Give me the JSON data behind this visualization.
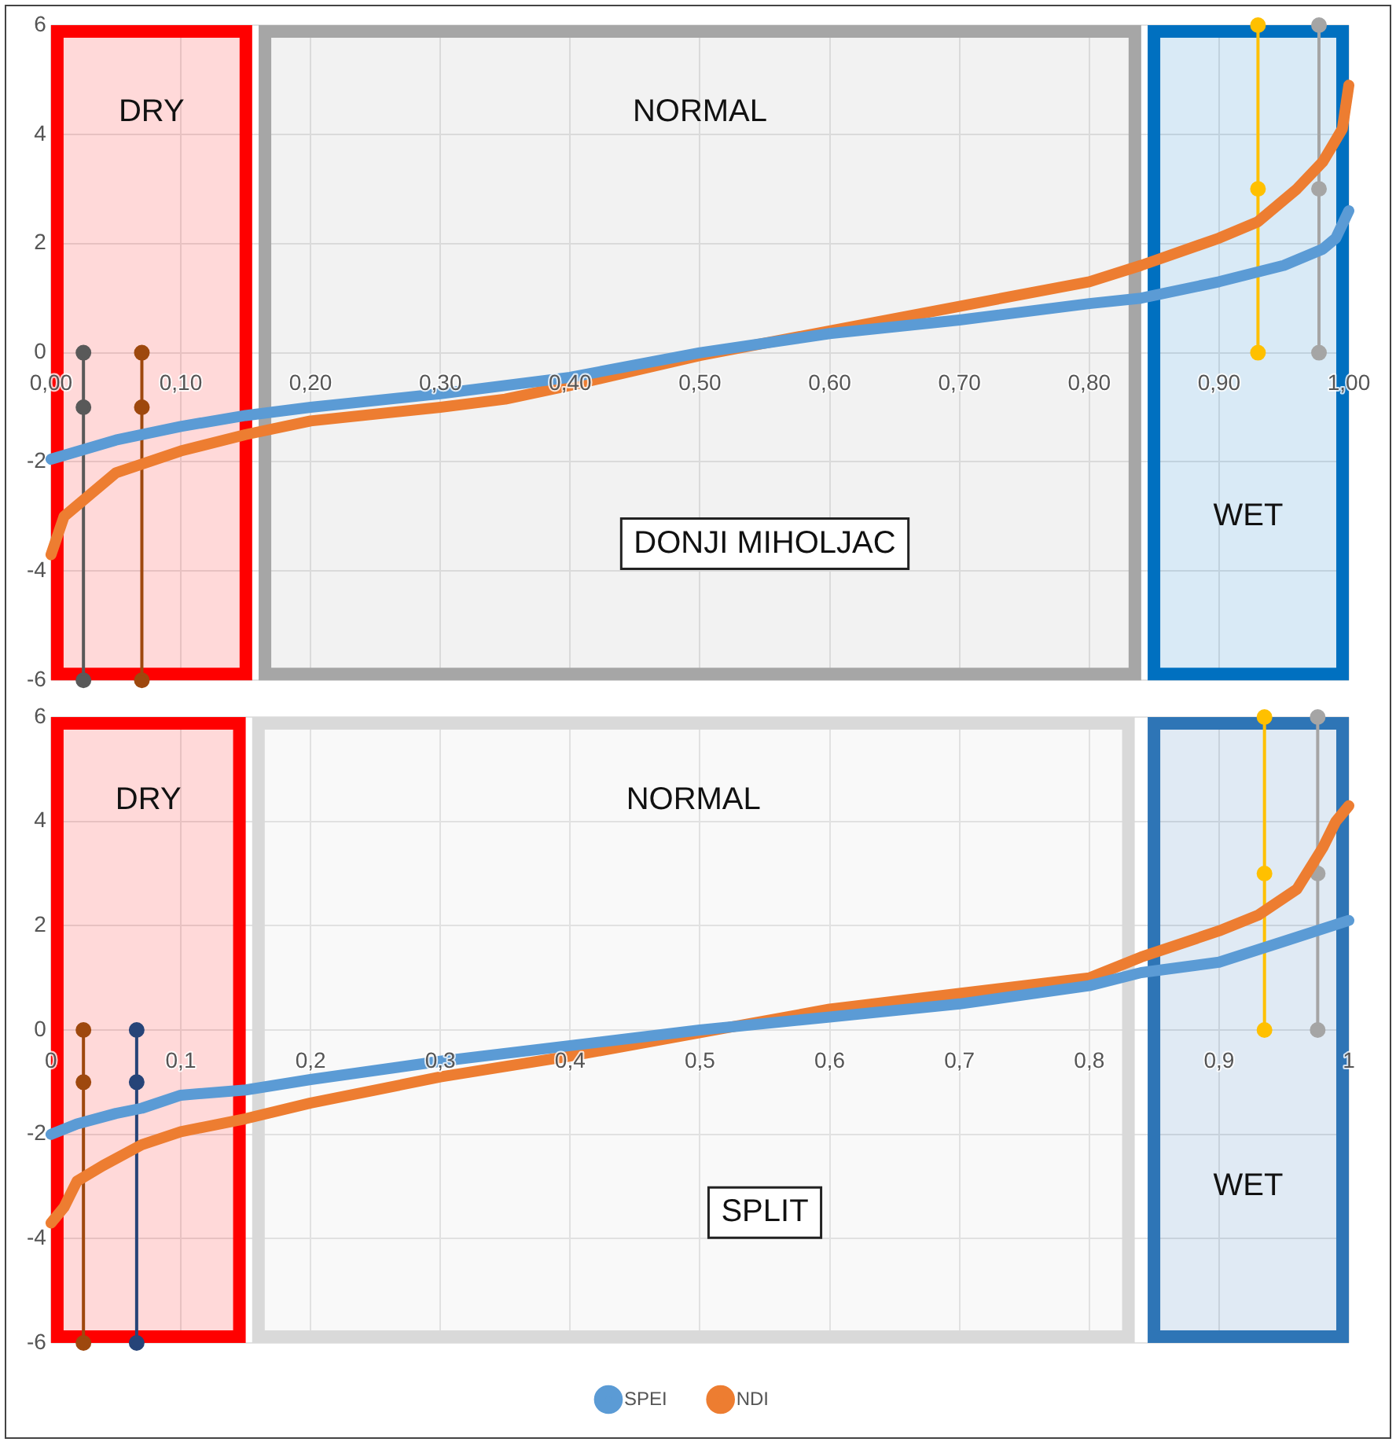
{
  "chart_data": [
    {
      "type": "line",
      "annotations": [
        "DONJI MIHOLJAC"
      ],
      "xlim": [
        0,
        1
      ],
      "ylim": [
        -6,
        6
      ],
      "xticks": [
        {
          "value": 0,
          "label": "0,00"
        },
        {
          "value": 0.1,
          "label": "0,10"
        },
        {
          "value": 0.2,
          "label": "0,20"
        },
        {
          "value": 0.3,
          "label": "0,30"
        },
        {
          "value": 0.4,
          "label": "0,40"
        },
        {
          "value": 0.5,
          "label": "0,50"
        },
        {
          "value": 0.6,
          "label": "0,60"
        },
        {
          "value": 0.7,
          "label": "0,70"
        },
        {
          "value": 0.8,
          "label": "0,80"
        },
        {
          "value": 0.9,
          "label": "0,90"
        },
        {
          "value": 1,
          "label": "1,00"
        }
      ],
      "yticks": [
        -6,
        -4,
        -2,
        0,
        2,
        4,
        6
      ],
      "grid": true,
      "legend": false,
      "line_style": "solid",
      "marker": "none",
      "bands": [
        {
          "axis": "x",
          "from": 0,
          "to": 0.155,
          "label": "DRY",
          "color": "#ff0000"
        },
        {
          "axis": "x",
          "from": 0.16,
          "to": 0.84,
          "label": "NORMAL",
          "color": "#a6a6a6"
        },
        {
          "axis": "x",
          "from": 0.845,
          "to": 1,
          "label": "WET",
          "color": "#0070c0"
        }
      ],
      "series": [
        {
          "color": "#5b9bd5",
          "x": [
            0,
            0.05,
            0.1,
            0.15,
            0.2,
            0.3,
            0.4,
            0.5,
            0.6,
            0.7,
            0.8,
            0.84,
            0.9,
            0.95,
            0.98,
            0.99,
            1
          ],
          "values": [
            -1.95,
            -1.6,
            -1.35,
            -1.15,
            -1,
            -0.75,
            -0.45,
            0,
            0.35,
            0.6,
            0.9,
            1,
            1.3,
            1.6,
            1.9,
            2.1,
            2.6
          ]
        },
        {
          "color": "#ed7d31",
          "x": [
            0,
            0.01,
            0.03,
            0.05,
            0.1,
            0.15,
            0.2,
            0.3,
            0.35,
            0.4,
            0.5,
            0.6,
            0.7,
            0.8,
            0.84,
            0.9,
            0.93,
            0.96,
            0.98,
            0.99,
            0.995,
            1
          ],
          "values": [
            -3.7,
            -3,
            -2.6,
            -2.2,
            -1.8,
            -1.5,
            -1.25,
            -1,
            -0.85,
            -0.6,
            -0.05,
            0.4,
            0.85,
            1.3,
            1.6,
            2.1,
            2.4,
            3,
            3.5,
            3.9,
            4.1,
            4.9
          ]
        },
        {
          "color": "#595959",
          "marker": "circle",
          "x": [
            0.025,
            0.025,
            0.025
          ],
          "values": [
            0,
            -1,
            -6
          ]
        },
        {
          "color": "#9e480e",
          "marker": "circle",
          "x": [
            0.07,
            0.07,
            0.07
          ],
          "values": [
            0,
            -1,
            -6
          ]
        },
        {
          "color": "#ffc000",
          "marker": "circle",
          "x": [
            0.93,
            0.93,
            0.93
          ],
          "values": [
            6,
            3,
            0
          ]
        },
        {
          "color": "#a5a5a5",
          "marker": "circle",
          "x": [
            0.977,
            0.977,
            0.977
          ],
          "values": [
            6,
            3,
            0
          ]
        }
      ]
    },
    {
      "type": "line",
      "annotations": [
        "SPLIT"
      ],
      "xlim": [
        0,
        1
      ],
      "ylim": [
        -6,
        6
      ],
      "xticks": [
        0,
        {
          "value": 0.1,
          "label": "0,1"
        },
        {
          "value": 0.2,
          "label": "0,2"
        },
        {
          "value": 0.3,
          "label": "0,3"
        },
        {
          "value": 0.4,
          "label": "0,4"
        },
        {
          "value": 0.5,
          "label": "0,5"
        },
        {
          "value": 0.6,
          "label": "0,6"
        },
        {
          "value": 0.7,
          "label": "0,7"
        },
        {
          "value": 0.8,
          "label": "0,8"
        },
        {
          "value": 0.9,
          "label": "0,9"
        },
        1
      ],
      "yticks": [
        -6,
        -4,
        -2,
        0,
        2,
        4,
        6
      ],
      "grid": true,
      "legend": "bottom",
      "line_style": "solid",
      "marker": "none",
      "bands": [
        {
          "axis": "x",
          "from": 0,
          "to": 0.15,
          "label": "DRY",
          "color": "#ff0000"
        },
        {
          "axis": "x",
          "from": 0.155,
          "to": 0.835,
          "label": "NORMAL",
          "color": "#d9d9d9"
        },
        {
          "axis": "x",
          "from": 0.845,
          "to": 1,
          "label": "WET",
          "color": "#2e75b6"
        }
      ],
      "series": [
        {
          "name": "SPEI",
          "color": "#5b9bd5",
          "x": [
            0,
            0.02,
            0.05,
            0.07,
            0.1,
            0.15,
            0.2,
            0.3,
            0.4,
            0.5,
            0.6,
            0.7,
            0.8,
            0.84,
            0.9,
            0.95,
            1
          ],
          "values": [
            -2,
            -1.8,
            -1.6,
            -1.5,
            -1.25,
            -1.15,
            -0.95,
            -0.6,
            -0.3,
            0,
            0.25,
            0.5,
            0.85,
            1.1,
            1.3,
            1.7,
            2.1
          ]
        },
        {
          "name": "NDI",
          "color": "#ed7d31",
          "x": [
            0,
            0.01,
            0.02,
            0.04,
            0.07,
            0.1,
            0.15,
            0.2,
            0.3,
            0.4,
            0.5,
            0.6,
            0.7,
            0.8,
            0.84,
            0.9,
            0.93,
            0.96,
            0.98,
            0.99,
            1
          ],
          "values": [
            -3.7,
            -3.4,
            -2.9,
            -2.6,
            -2.2,
            -1.95,
            -1.7,
            -1.4,
            -0.9,
            -0.5,
            -0.05,
            0.4,
            0.7,
            1,
            1.4,
            1.9,
            2.2,
            2.7,
            3.5,
            4,
            4.3
          ]
        },
        {
          "color": "#9e480e",
          "marker": "circle",
          "x": [
            0.025,
            0.025,
            0.025
          ],
          "values": [
            0,
            -1,
            -6
          ]
        },
        {
          "color": "#264478",
          "marker": "circle",
          "x": [
            0.066,
            0.066,
            0.066
          ],
          "values": [
            0,
            -1,
            -6
          ]
        },
        {
          "color": "#ffc000",
          "marker": "circle",
          "x": [
            0.935,
            0.935,
            0.935
          ],
          "values": [
            6,
            3,
            0
          ]
        },
        {
          "color": "#a5a5a5",
          "marker": "circle",
          "x": [
            0.976,
            0.976,
            0.976
          ],
          "values": [
            6,
            3,
            0
          ]
        }
      ]
    }
  ]
}
